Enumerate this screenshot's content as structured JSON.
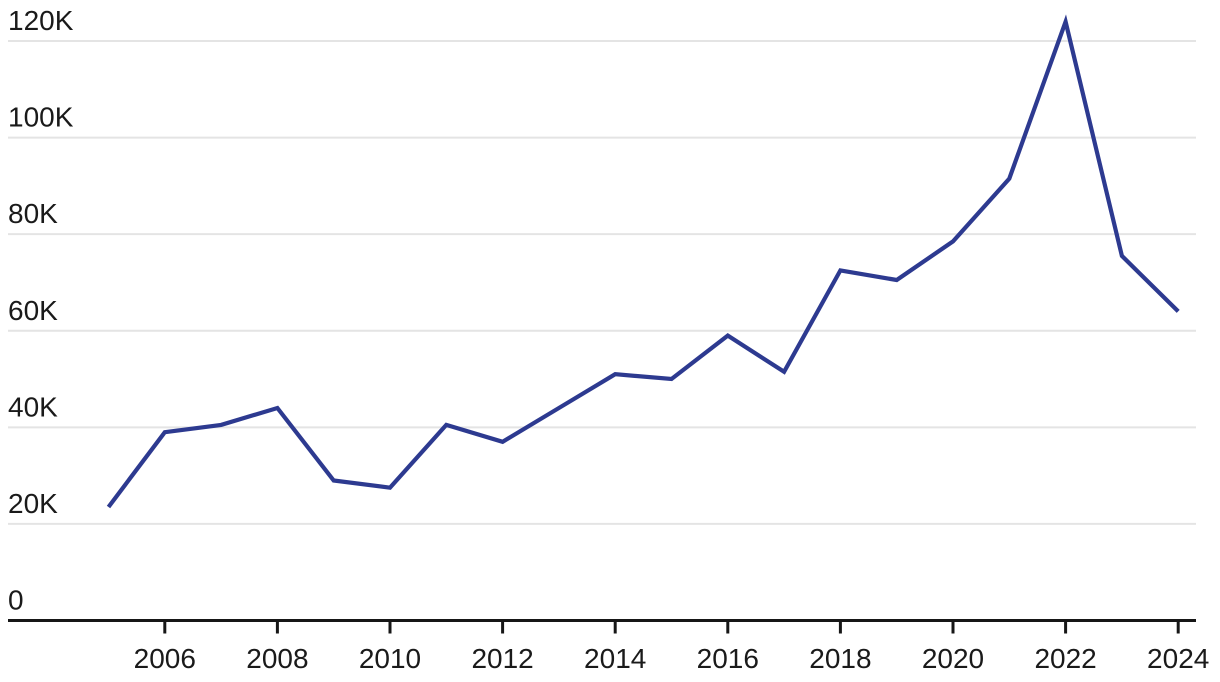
{
  "chart_data": {
    "type": "line",
    "title": "",
    "subtitle": "",
    "xlabel": "",
    "ylabel": "",
    "legend": false,
    "grid": true,
    "series_count": 1,
    "x": [
      2005,
      2006,
      2007,
      2008,
      2009,
      2010,
      2011,
      2012,
      2013,
      2014,
      2015,
      2016,
      2017,
      2018,
      2019,
      2020,
      2021,
      2022,
      2023,
      2024
    ],
    "values": [
      23500,
      39000,
      40500,
      44000,
      29000,
      27500,
      40500,
      37000,
      44000,
      51000,
      50000,
      59000,
      51500,
      72500,
      70500,
      78500,
      91500,
      124000,
      75500,
      64000
    ],
    "xlim": [
      2003.2,
      2024.3
    ],
    "ylim": [
      0,
      128000
    ],
    "ytick_values": [
      0,
      20000,
      40000,
      60000,
      80000,
      100000,
      120000
    ],
    "ytick_labels": [
      "0",
      "20K",
      "40K",
      "60K",
      "80K",
      "100K",
      "120K"
    ],
    "xtick_values": [
      2006,
      2008,
      2010,
      2012,
      2014,
      2016,
      2018,
      2020,
      2022,
      2024
    ],
    "xtick_labels": [
      "2006",
      "2008",
      "2010",
      "2012",
      "2014",
      "2016",
      "2018",
      "2020",
      "2022",
      "2024"
    ]
  },
  "colors": {
    "line": "#2d3a90",
    "gridline": "#e4e4e4",
    "axis": "#161616",
    "label": "#1a1a1a",
    "background": "#ffffff"
  }
}
